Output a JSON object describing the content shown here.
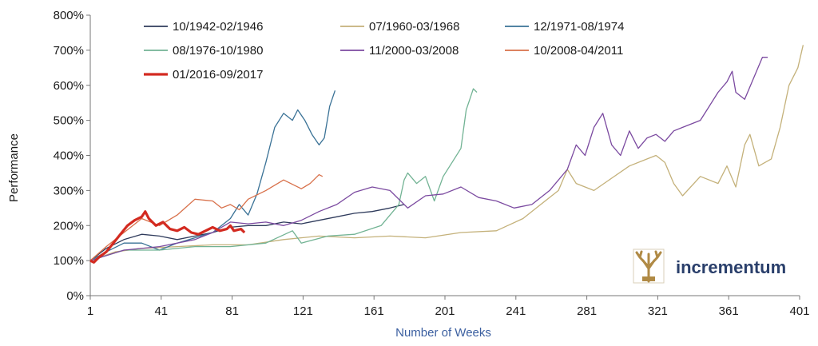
{
  "chart_data": {
    "type": "line",
    "title": "",
    "xlabel": "Number of Weeks",
    "ylabel": "Performance",
    "xlim": [
      1,
      401
    ],
    "ylim": [
      0,
      800
    ],
    "x_ticks": [
      1,
      41,
      81,
      121,
      161,
      201,
      241,
      281,
      321,
      361,
      401
    ],
    "y_ticks": [
      0,
      100,
      200,
      300,
      400,
      500,
      600,
      700,
      800
    ],
    "y_tick_labels": [
      "0%",
      "100%",
      "200%",
      "300%",
      "400%",
      "500%",
      "600%",
      "700%",
      "800%"
    ],
    "y_unit": "%",
    "grid": false,
    "legend_position": "top-left",
    "series": [
      {
        "name": "10/1942-02/1946",
        "color": "#2f3b5c",
        "width": 1.3,
        "points": [
          [
            1,
            100
          ],
          [
            10,
            135
          ],
          [
            20,
            160
          ],
          [
            30,
            175
          ],
          [
            40,
            170
          ],
          [
            50,
            160
          ],
          [
            60,
            170
          ],
          [
            70,
            180
          ],
          [
            80,
            195
          ],
          [
            90,
            200
          ],
          [
            100,
            200
          ],
          [
            110,
            210
          ],
          [
            120,
            205
          ],
          [
            130,
            215
          ],
          [
            140,
            225
          ],
          [
            150,
            235
          ],
          [
            160,
            240
          ],
          [
            170,
            250
          ],
          [
            178,
            260
          ]
        ]
      },
      {
        "name": "07/1960-03/1968",
        "color": "#c4b17a",
        "width": 1.3,
        "points": [
          [
            1,
            100
          ],
          [
            15,
            125
          ],
          [
            30,
            135
          ],
          [
            50,
            140
          ],
          [
            70,
            145
          ],
          [
            90,
            145
          ],
          [
            110,
            160
          ],
          [
            130,
            170
          ],
          [
            150,
            165
          ],
          [
            170,
            170
          ],
          [
            190,
            165
          ],
          [
            210,
            180
          ],
          [
            230,
            185
          ],
          [
            245,
            220
          ],
          [
            255,
            260
          ],
          [
            265,
            300
          ],
          [
            270,
            360
          ],
          [
            275,
            320
          ],
          [
            285,
            300
          ],
          [
            295,
            335
          ],
          [
            305,
            370
          ],
          [
            315,
            390
          ],
          [
            320,
            400
          ],
          [
            325,
            380
          ],
          [
            330,
            320
          ],
          [
            335,
            285
          ],
          [
            345,
            340
          ],
          [
            355,
            320
          ],
          [
            360,
            370
          ],
          [
            365,
            310
          ],
          [
            370,
            430
          ],
          [
            373,
            460
          ],
          [
            378,
            370
          ],
          [
            385,
            390
          ],
          [
            390,
            480
          ],
          [
            395,
            600
          ],
          [
            400,
            650
          ],
          [
            403,
            715
          ]
        ]
      },
      {
        "name": "12/1971-08/1974",
        "color": "#3a7296",
        "width": 1.3,
        "points": [
          [
            1,
            100
          ],
          [
            10,
            125
          ],
          [
            20,
            150
          ],
          [
            30,
            150
          ],
          [
            40,
            130
          ],
          [
            50,
            150
          ],
          [
            60,
            165
          ],
          [
            70,
            180
          ],
          [
            80,
            220
          ],
          [
            85,
            260
          ],
          [
            90,
            230
          ],
          [
            95,
            290
          ],
          [
            100,
            380
          ],
          [
            105,
            480
          ],
          [
            110,
            520
          ],
          [
            115,
            500
          ],
          [
            118,
            530
          ],
          [
            122,
            500
          ],
          [
            126,
            460
          ],
          [
            130,
            430
          ],
          [
            133,
            450
          ],
          [
            136,
            540
          ],
          [
            139,
            585
          ]
        ]
      },
      {
        "name": "08/1976-10/1980",
        "color": "#72b394",
        "width": 1.3,
        "points": [
          [
            1,
            100
          ],
          [
            20,
            130
          ],
          [
            40,
            130
          ],
          [
            60,
            140
          ],
          [
            80,
            140
          ],
          [
            100,
            150
          ],
          [
            115,
            185
          ],
          [
            120,
            150
          ],
          [
            135,
            170
          ],
          [
            150,
            175
          ],
          [
            165,
            200
          ],
          [
            175,
            260
          ],
          [
            178,
            330
          ],
          [
            180,
            350
          ],
          [
            185,
            320
          ],
          [
            190,
            340
          ],
          [
            195,
            270
          ],
          [
            200,
            340
          ],
          [
            205,
            380
          ],
          [
            210,
            420
          ],
          [
            213,
            530
          ],
          [
            215,
            560
          ],
          [
            217,
            590
          ],
          [
            219,
            580
          ]
        ]
      },
      {
        "name": "11/2000-03/2008",
        "color": "#7b4aa0",
        "width": 1.3,
        "points": [
          [
            1,
            100
          ],
          [
            20,
            130
          ],
          [
            40,
            140
          ],
          [
            60,
            160
          ],
          [
            70,
            180
          ],
          [
            80,
            210
          ],
          [
            90,
            205
          ],
          [
            100,
            210
          ],
          [
            110,
            200
          ],
          [
            120,
            215
          ],
          [
            130,
            240
          ],
          [
            140,
            260
          ],
          [
            150,
            295
          ],
          [
            160,
            310
          ],
          [
            170,
            300
          ],
          [
            180,
            250
          ],
          [
            190,
            285
          ],
          [
            200,
            290
          ],
          [
            210,
            310
          ],
          [
            220,
            280
          ],
          [
            230,
            270
          ],
          [
            240,
            250
          ],
          [
            250,
            260
          ],
          [
            260,
            300
          ],
          [
            270,
            360
          ],
          [
            275,
            430
          ],
          [
            280,
            400
          ],
          [
            285,
            480
          ],
          [
            290,
            520
          ],
          [
            295,
            430
          ],
          [
            300,
            400
          ],
          [
            305,
            470
          ],
          [
            310,
            420
          ],
          [
            315,
            450
          ],
          [
            320,
            460
          ],
          [
            325,
            440
          ],
          [
            330,
            470
          ],
          [
            335,
            480
          ],
          [
            340,
            490
          ],
          [
            345,
            500
          ],
          [
            350,
            540
          ],
          [
            355,
            580
          ],
          [
            360,
            610
          ],
          [
            363,
            640
          ],
          [
            365,
            580
          ],
          [
            370,
            560
          ],
          [
            375,
            620
          ],
          [
            380,
            680
          ],
          [
            383,
            680
          ]
        ]
      },
      {
        "name": "10/2008-04/2011",
        "color": "#d8704a",
        "width": 1.3,
        "points": [
          [
            1,
            100
          ],
          [
            10,
            140
          ],
          [
            20,
            180
          ],
          [
            30,
            220
          ],
          [
            40,
            200
          ],
          [
            50,
            230
          ],
          [
            60,
            275
          ],
          [
            70,
            270
          ],
          [
            75,
            250
          ],
          [
            80,
            260
          ],
          [
            85,
            245
          ],
          [
            90,
            275
          ],
          [
            100,
            300
          ],
          [
            110,
            330
          ],
          [
            120,
            305
          ],
          [
            125,
            320
          ],
          [
            130,
            345
          ],
          [
            132,
            340
          ]
        ]
      },
      {
        "name": "01/2016-09/2017",
        "color": "#d32a20",
        "width": 3.2,
        "points": [
          [
            1,
            100
          ],
          [
            3,
            95
          ],
          [
            6,
            110
          ],
          [
            10,
            125
          ],
          [
            14,
            150
          ],
          [
            18,
            175
          ],
          [
            22,
            200
          ],
          [
            26,
            215
          ],
          [
            30,
            225
          ],
          [
            32,
            240
          ],
          [
            34,
            220
          ],
          [
            38,
            200
          ],
          [
            42,
            210
          ],
          [
            46,
            190
          ],
          [
            50,
            185
          ],
          [
            54,
            195
          ],
          [
            58,
            180
          ],
          [
            62,
            175
          ],
          [
            66,
            185
          ],
          [
            70,
            195
          ],
          [
            74,
            185
          ],
          [
            78,
            190
          ],
          [
            80,
            200
          ],
          [
            82,
            185
          ],
          [
            86,
            190
          ],
          [
            88,
            180
          ]
        ]
      }
    ]
  },
  "brand": {
    "name": "incrementum",
    "text_color": "#2a3f6b",
    "logo_color": "#b08a45"
  }
}
